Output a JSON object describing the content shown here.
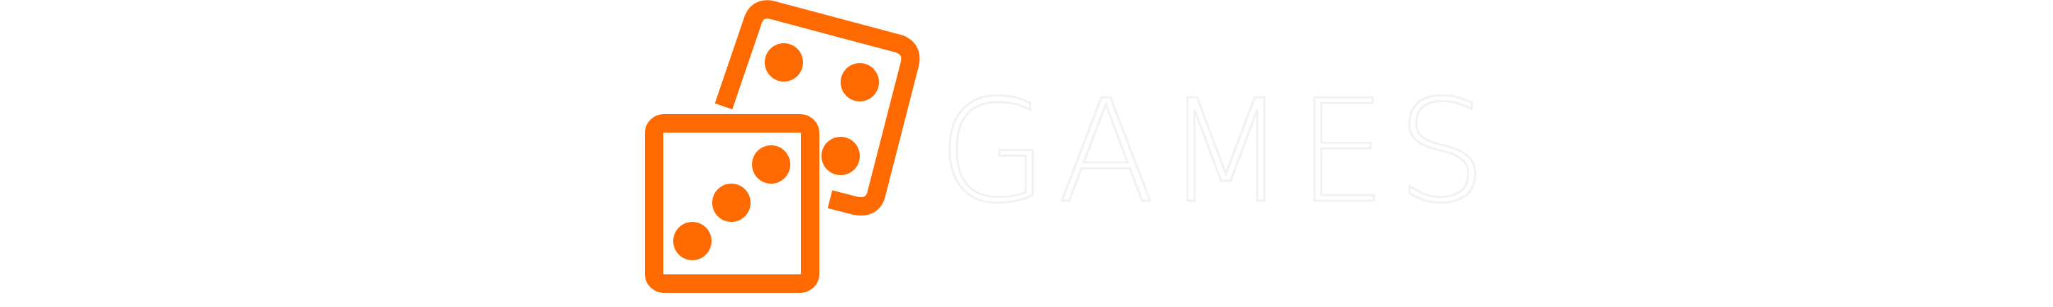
{
  "logo": {
    "wordmark": "GAMES",
    "icon": "dice-icon",
    "colors": {
      "accent": "#FF6A00",
      "background": "#FFFFFF",
      "wordmark_fill": "#FFFFFF",
      "wordmark_outline": "#F1F1F1"
    }
  }
}
